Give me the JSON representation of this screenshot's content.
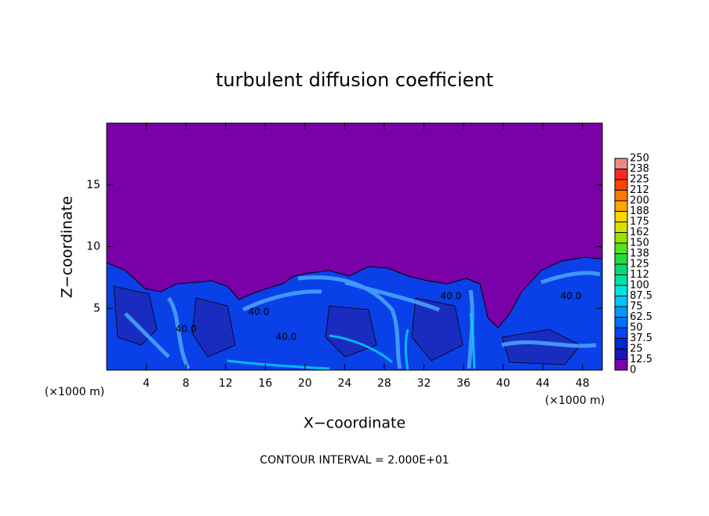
{
  "chart_data": {
    "type": "heatmap",
    "title": "turbulent diffusion coefficient",
    "xlabel": "X−coordinate",
    "ylabel": "Z−coordinate",
    "x_unit_labels": [
      "(×1000 m)",
      "(×1000 m)"
    ],
    "footer": "CONTOUR INTERVAL = 2.000E+01",
    "contour_labels": [
      "40.0",
      "40.0",
      "40.0",
      "40.0",
      "40.0"
    ],
    "xlim": [
      0,
      50
    ],
    "xticks": [
      4,
      8,
      12,
      16,
      20,
      24,
      28,
      32,
      36,
      40,
      44,
      48
    ],
    "ylim": [
      0,
      20
    ],
    "yticks": [
      5,
      10,
      15
    ],
    "colorbar": {
      "levels": [
        0,
        12.5,
        25,
        37.5,
        50,
        62.5,
        75,
        87.5,
        100,
        112,
        125,
        138,
        150,
        162,
        175,
        188,
        200,
        212,
        225,
        238,
        250
      ],
      "colors": [
        "#7a00a8",
        "#1c14b4",
        "#0028d8",
        "#0044f4",
        "#0070ff",
        "#0098ff",
        "#00c4ff",
        "#00e4e0",
        "#00e0a8",
        "#00dc78",
        "#20dc3c",
        "#58e020",
        "#98e000",
        "#d8e000",
        "#ffd400",
        "#ffa800",
        "#ff7800",
        "#ff4400",
        "#ff2828",
        "#f08888"
      ]
    }
  }
}
